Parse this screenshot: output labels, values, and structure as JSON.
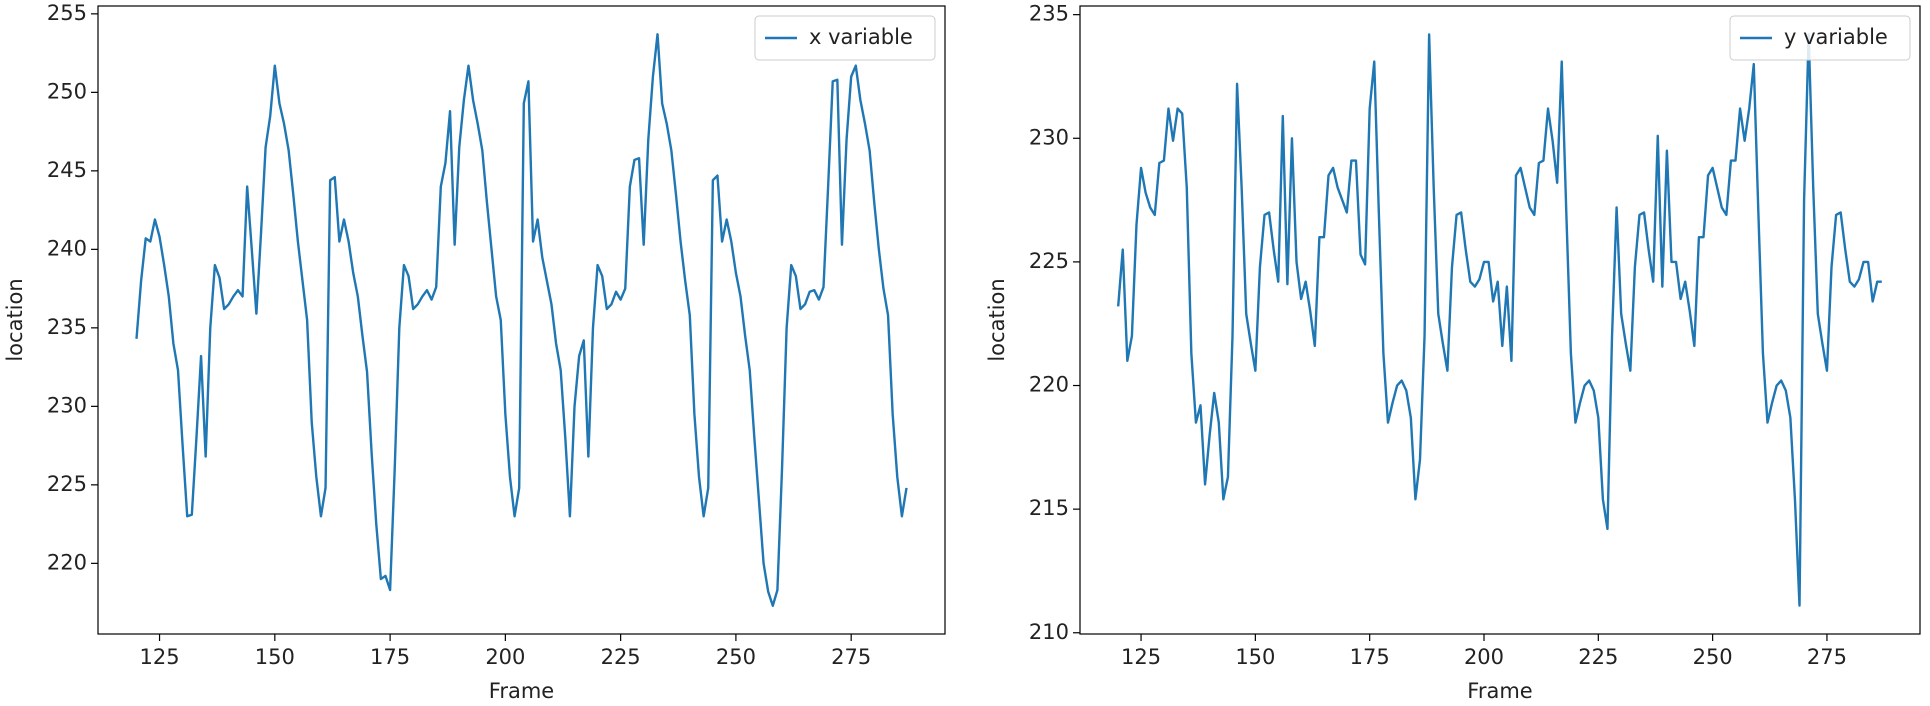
{
  "chart_data": [
    {
      "type": "line",
      "xlabel": "Frame",
      "ylabel": "location",
      "x": [
        120,
        121,
        122,
        123,
        124,
        125,
        126,
        127,
        128,
        129,
        130,
        131,
        132,
        133,
        134,
        135,
        136,
        137,
        138,
        139,
        140,
        141,
        142,
        143,
        144,
        145,
        146,
        147,
        148,
        149,
        150,
        151,
        152,
        153,
        154,
        155,
        156,
        157,
        158,
        159,
        160,
        161,
        162,
        163,
        164,
        165,
        166,
        167,
        168,
        169,
        170,
        171,
        172,
        173,
        174,
        175,
        176,
        177,
        178,
        179,
        180,
        181,
        182,
        183,
        184,
        185,
        186,
        187,
        188,
        189,
        190,
        191,
        192,
        193,
        194,
        195,
        196,
        197,
        198,
        199,
        200,
        201,
        202,
        203,
        204,
        205,
        206,
        207,
        208,
        209,
        210,
        211,
        212,
        213,
        214,
        215,
        216,
        217,
        218,
        219,
        220,
        221,
        222,
        223,
        224,
        225,
        226,
        227,
        228,
        229,
        230,
        231,
        232,
        233,
        234,
        235,
        236,
        237,
        238,
        239,
        240,
        241,
        242,
        243,
        244,
        245,
        246,
        247,
        248,
        249,
        250,
        251,
        252,
        253,
        254,
        255,
        256,
        257,
        258,
        259,
        260,
        261,
        262,
        263,
        264,
        265,
        266,
        267,
        268,
        269,
        270,
        271,
        272,
        273,
        274,
        275,
        276,
        277,
        278,
        279,
        280,
        281,
        282,
        283,
        284,
        285,
        286,
        287
      ],
      "series": [
        {
          "name": "x variable",
          "color": "#1f77b4",
          "values": [
            234.3,
            238,
            240.7,
            240.5,
            241.9,
            240.8,
            239,
            237,
            234,
            232.3,
            227.5,
            223,
            223.1,
            228,
            233.2,
            226.8,
            235,
            239,
            238.2,
            236.2,
            236.5,
            237,
            237.4,
            237,
            244,
            240,
            235.9,
            241,
            246.5,
            248.5,
            251.7,
            249.3,
            248,
            246.3,
            243.5,
            240.5,
            238,
            235.5,
            229,
            225.5,
            223,
            224.8,
            244.4,
            244.6,
            240.5,
            241.9,
            240.5,
            238.5,
            237,
            234.5,
            232.2,
            227,
            222.5,
            219,
            219.2,
            218.3,
            226,
            235,
            239,
            238.3,
            236.2,
            236.5,
            237,
            237.4,
            236.8,
            237.6,
            244,
            245.5,
            248.8,
            240.3,
            246.5,
            249.5,
            251.7,
            249.5,
            248,
            246.3,
            243,
            240,
            237,
            235.5,
            229.5,
            225.5,
            223,
            224.8,
            249.3,
            250.7,
            240.5,
            241.9,
            239.5,
            238,
            236.5,
            234,
            232.3,
            228,
            223,
            230,
            233.2,
            234.2,
            226.8,
            235,
            239,
            238.3,
            236.2,
            236.5,
            237.3,
            236.8,
            237.5,
            244,
            245.7,
            245.8,
            240.3,
            247,
            251,
            253.7,
            249.3,
            248,
            246.3,
            243.5,
            240.5,
            238,
            235.8,
            229.5,
            225.5,
            223,
            224.8,
            244.4,
            244.7,
            240.5,
            241.9,
            240.5,
            238.5,
            237,
            234.5,
            232.3,
            228,
            224,
            220,
            218.2,
            217.3,
            218.3,
            226,
            235,
            239,
            238.3,
            236.2,
            236.5,
            237.3,
            237.4,
            236.8,
            237.6,
            244,
            250.7,
            250.8,
            240.3,
            247,
            251,
            251.7,
            249.5,
            248,
            246.3,
            243,
            240,
            237.5,
            235.8,
            229.5,
            225.5,
            223,
            224.8
          ]
        }
      ],
      "xlim": [
        111.65,
        295.35
      ],
      "ylim": [
        215.5,
        255.5
      ],
      "xticks": [
        125,
        150,
        175,
        200,
        225,
        250,
        275
      ],
      "yticks": [
        220,
        225,
        230,
        235,
        240,
        245,
        250,
        255
      ],
      "legend": "upper right"
    },
    {
      "type": "line",
      "xlabel": "Frame",
      "ylabel": "location",
      "x": [
        120,
        121,
        122,
        123,
        124,
        125,
        126,
        127,
        128,
        129,
        130,
        131,
        132,
        133,
        134,
        135,
        136,
        137,
        138,
        139,
        140,
        141,
        142,
        143,
        144,
        145,
        146,
        147,
        148,
        149,
        150,
        151,
        152,
        153,
        154,
        155,
        156,
        157,
        158,
        159,
        160,
        161,
        162,
        163,
        164,
        165,
        166,
        167,
        168,
        169,
        170,
        171,
        172,
        173,
        174,
        175,
        176,
        177,
        178,
        179,
        180,
        181,
        182,
        183,
        184,
        185,
        186,
        187,
        188,
        189,
        190,
        191,
        192,
        193,
        194,
        195,
        196,
        197,
        198,
        199,
        200,
        201,
        202,
        203,
        204,
        205,
        206,
        207,
        208,
        209,
        210,
        211,
        212,
        213,
        214,
        215,
        216,
        217,
        218,
        219,
        220,
        221,
        222,
        223,
        224,
        225,
        226,
        227,
        228,
        229,
        230,
        231,
        232,
        233,
        234,
        235,
        236,
        237,
        238,
        239,
        240,
        241,
        242,
        243,
        244,
        245,
        246,
        247,
        248,
        249,
        250,
        251,
        252,
        253,
        254,
        255,
        256,
        257,
        258,
        259,
        260,
        261,
        262,
        263,
        264,
        265,
        266,
        267,
        268,
        269,
        270,
        271,
        272,
        273,
        274,
        275,
        276,
        277,
        278,
        279,
        280,
        281,
        282,
        283,
        284,
        285,
        286,
        287
      ],
      "series": [
        {
          "name": "y variable",
          "color": "#1f77b4",
          "values": [
            223.2,
            225.5,
            221,
            222,
            226.5,
            228.8,
            227.8,
            227.2,
            226.9,
            229,
            229.1,
            231.2,
            229.9,
            231.2,
            231,
            228,
            221.3,
            218.5,
            219.2,
            216,
            218,
            219.7,
            218.5,
            215.4,
            216.3,
            222,
            232.2,
            228,
            222.9,
            221.7,
            220.6,
            224.8,
            226.9,
            227,
            225.5,
            224.2,
            230.9,
            224.1,
            230,
            225,
            223.5,
            224.2,
            223,
            221.6,
            226,
            226,
            228.5,
            228.8,
            228,
            227.5,
            227,
            229.1,
            229.1,
            225.3,
            224.9,
            231.2,
            233.1,
            227,
            221.3,
            218.5,
            219.3,
            220,
            220.2,
            219.8,
            218.7,
            215.4,
            217,
            222,
            234.2,
            228,
            222.9,
            221.7,
            220.6,
            224.8,
            226.9,
            227,
            225.5,
            224.2,
            224,
            224.3,
            225,
            225,
            223.4,
            224.2,
            221.6,
            224,
            221,
            228.5,
            228.8,
            228,
            227.2,
            226.9,
            229,
            229.1,
            231.2,
            229.9,
            228.2,
            233.1,
            227,
            221.3,
            218.5,
            219.3,
            220,
            220.2,
            219.8,
            218.7,
            215.4,
            214.2,
            222,
            227.2,
            222.9,
            221.7,
            220.6,
            224.8,
            226.9,
            227,
            225.5,
            224.2,
            230.1,
            224,
            229.5,
            225,
            225,
            223.5,
            224.2,
            223,
            221.6,
            226,
            226,
            228.5,
            228.8,
            228,
            227.2,
            226.9,
            229.1,
            229.1,
            231.2,
            229.9,
            231.2,
            233,
            227,
            221.3,
            218.5,
            219.3,
            220,
            220.2,
            219.8,
            218.7,
            215.4,
            211.1,
            227.5,
            234.2,
            228,
            222.9,
            221.7,
            220.6,
            224.8,
            226.9,
            227,
            225.5,
            224.2,
            224,
            224.3,
            225,
            225,
            223.4,
            224.2,
            224.2
          ]
        }
      ],
      "xlim": [
        111.65,
        295.35
      ],
      "ylim": [
        209.95,
        235.35
      ],
      "xticks": [
        125,
        150,
        175,
        200,
        225,
        250,
        275
      ],
      "yticks": [
        210,
        215,
        220,
        225,
        230,
        235
      ],
      "legend": "upper right"
    }
  ]
}
